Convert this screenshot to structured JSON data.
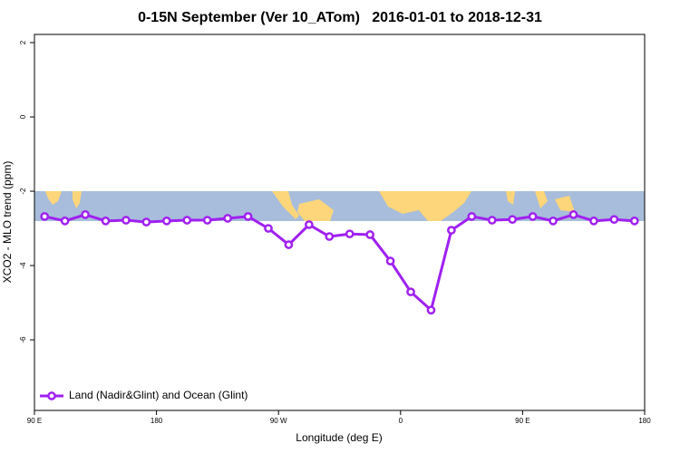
{
  "chart_data": {
    "type": "line",
    "title": "0-15N September (Ver 10_ATom)   2016-01-01 to 2018-12-31",
    "xlabel": "Longitude (deg E)",
    "ylabel": "XCO2 - MLO trend (ppm)",
    "x": [
      97.5,
      112.5,
      127.5,
      142.5,
      157.5,
      172.5,
      187.5,
      202.5,
      217.5,
      232.5,
      247.5,
      262.5,
      277.5,
      292.5,
      307.5,
      322.5,
      337.5,
      352.5,
      367.5,
      382.5,
      397.5,
      412.5,
      427.5,
      442.5,
      457.5,
      472.5,
      487.5,
      502.5,
      517.5,
      532.5
    ],
    "series": [
      {
        "name": "Land (Nadir&Glint) and Ocean (Glint)",
        "color": "#a020f0",
        "values": [
          -2.68,
          -2.8,
          -2.63,
          -2.8,
          -2.78,
          -2.83,
          -2.8,
          -2.78,
          -2.78,
          -2.73,
          -2.68,
          -3.0,
          -3.44,
          -2.9,
          -3.22,
          -3.15,
          -3.17,
          -3.88,
          -4.71,
          -5.2,
          -3.05,
          -2.68,
          -2.78,
          -2.76,
          -2.68,
          -2.8,
          -2.63,
          -2.8,
          -2.76,
          -2.8
        ]
      }
    ],
    "xlim": [
      90,
      540
    ],
    "ylim": [
      -7.9,
      2.22
    ],
    "xticks": [
      {
        "value": 90,
        "label": "90 E"
      },
      180,
      {
        "value": 270,
        "label": "90 W"
      },
      {
        "value": 360,
        "label": "0"
      },
      {
        "value": 450,
        "label": "90 E"
      },
      {
        "value": 540,
        "label": "180"
      }
    ],
    "yticks": [
      2,
      0,
      -2,
      -4,
      -6
    ],
    "legend": "bottomleft",
    "grid": false
  }
}
